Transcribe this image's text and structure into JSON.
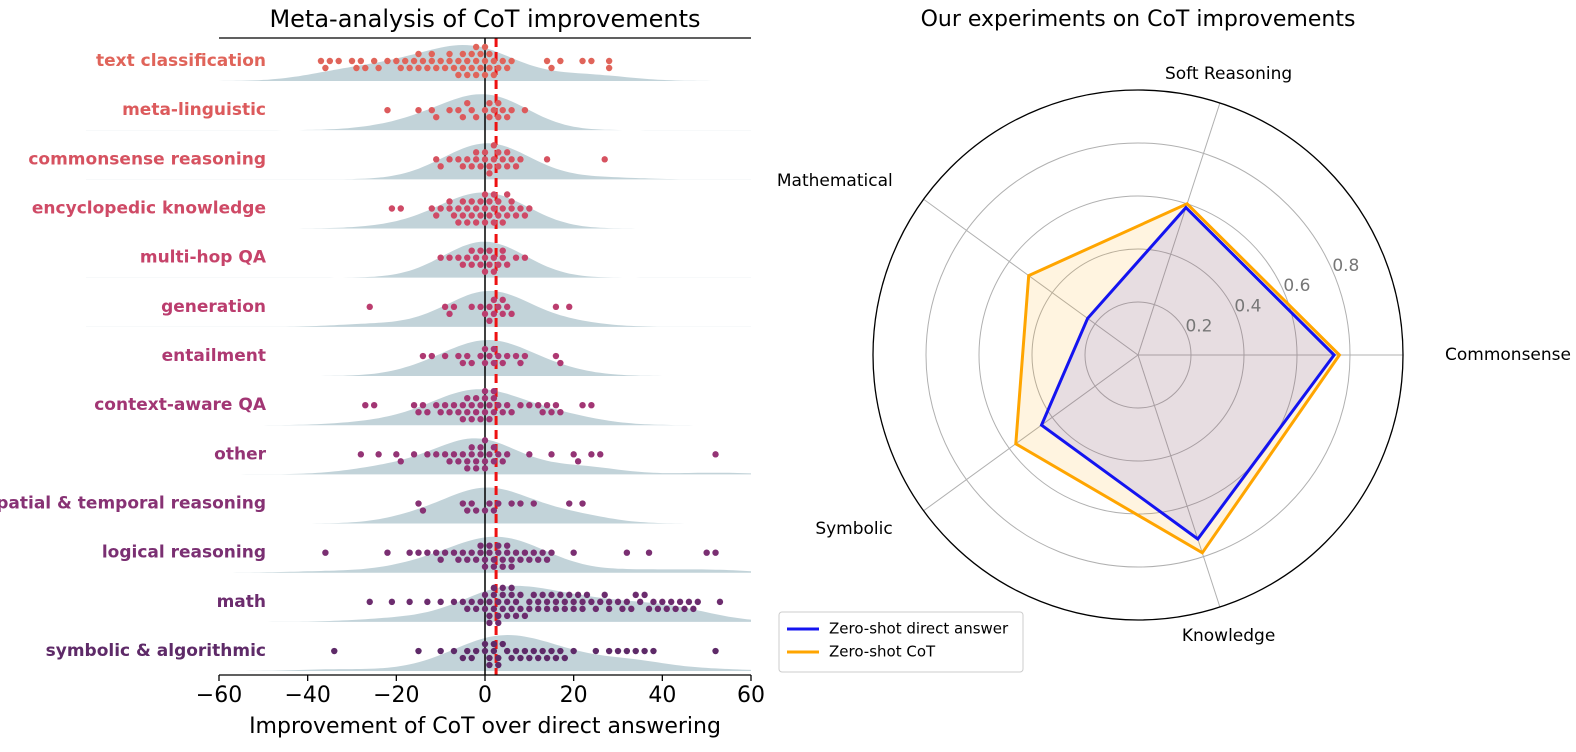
{
  "chart_data": [
    {
      "type": "swarm",
      "title": "Meta-analysis of CoT improvements",
      "x_label": "Improvement of CoT over direct answering",
      "xlim": [
        -60,
        60
      ],
      "xticks": [
        {
          "value": -60,
          "label": "−60"
        },
        {
          "value": -40,
          "label": "−40"
        },
        {
          "value": -20,
          "label": "−20"
        },
        0,
        20,
        40,
        60
      ],
      "categories": [
        "text classification",
        "meta-linguistic",
        "commonsense reasoning",
        "encyclopedic knowledge",
        "multi-hop QA",
        "generation",
        "entailment",
        "context-aware QA",
        "other",
        "spatial & temporal reasoning",
        "logical reasoning",
        "math",
        "symbolic & algorithmic"
      ],
      "colors": [
        "#e0645a",
        "#dc5a5c",
        "#d65260",
        "#cf4a66",
        "#c6436a",
        "#bb3d6e",
        "#ae3972",
        "#a23674",
        "#943475",
        "#873274",
        "#7a2f72",
        "#6c2c6e",
        "#5e2a68"
      ],
      "density_color": "#b7cbd2",
      "reference_lines": [
        {
          "value": 0,
          "color": "#000000",
          "style": "solid"
        },
        {
          "value": 2.5,
          "color": "#ee1111",
          "style": "dashed"
        }
      ],
      "points": [
        [
          -37,
          -36,
          -35,
          -33,
          -30,
          -29,
          -28,
          -27,
          -25,
          -24,
          -22,
          -20,
          -19,
          -18,
          -17,
          -16,
          -15,
          -14,
          -13,
          -12,
          -11,
          -10,
          -9,
          -8,
          -7,
          -6,
          -5,
          -4,
          -3,
          -2,
          -1,
          0,
          1,
          2,
          3,
          4,
          5,
          6,
          14,
          15,
          17,
          22,
          24,
          28,
          28,
          -5,
          -3,
          -2,
          -1,
          0,
          1,
          -4,
          -2,
          0,
          2,
          -6,
          -8,
          -12,
          -15
        ],
        [
          -22,
          -15,
          -12,
          -11,
          -8,
          -6,
          -5,
          -3,
          -2,
          0,
          1,
          2,
          3,
          4,
          5,
          6,
          9,
          -4,
          1,
          3
        ],
        [
          -11,
          -10,
          -8,
          -6,
          -4,
          -3,
          -2,
          -1,
          0,
          1,
          2,
          3,
          4,
          5,
          6,
          7,
          8,
          14,
          27,
          -2,
          0,
          1,
          3,
          5,
          -5,
          2
        ],
        [
          -21,
          -19,
          -12,
          -11,
          -10,
          -8,
          -7,
          -6,
          -5,
          -4,
          -3,
          -2,
          -1,
          0,
          1,
          2,
          3,
          4,
          5,
          6,
          7,
          8,
          9,
          10,
          -5,
          -3,
          -1,
          0,
          1,
          2,
          3,
          -4,
          -2,
          0,
          2,
          4,
          6,
          -6,
          -8,
          5
        ],
        [
          -10,
          -8,
          -6,
          -5,
          -4,
          -3,
          -2,
          -1,
          0,
          1,
          2,
          3,
          4,
          5,
          7,
          9,
          -3,
          -1,
          1,
          2,
          4,
          0
        ],
        [
          -26,
          -9,
          -8,
          -7,
          -3,
          -1,
          0,
          1,
          2,
          3,
          4,
          5,
          6,
          16,
          19,
          2,
          4,
          1
        ],
        [
          -14,
          -12,
          -9,
          -6,
          -4,
          -3,
          -1,
          0,
          1,
          2,
          3,
          5,
          7,
          9,
          16,
          17,
          -5,
          0,
          2,
          4,
          8
        ],
        [
          -27,
          -25,
          -16,
          -14,
          -13,
          -11,
          -9,
          -7,
          -5,
          -4,
          -3,
          -2,
          -1,
          0,
          1,
          2,
          3,
          4,
          5,
          6,
          8,
          10,
          12,
          13,
          14,
          16,
          17,
          22,
          24,
          -6,
          -4,
          -2,
          0,
          1,
          2,
          -8,
          -3,
          -1,
          0,
          2,
          -5,
          -10,
          -15,
          15
        ],
        [
          -28,
          -24,
          -20,
          -19,
          -16,
          -13,
          -11,
          -9,
          -7,
          -5,
          -4,
          -3,
          -2,
          -1,
          0,
          1,
          2,
          3,
          4,
          5,
          10,
          15,
          20,
          21,
          24,
          26,
          52,
          -6,
          -3,
          -1,
          0,
          2,
          -4,
          -2,
          0,
          -8
        ],
        [
          -15,
          -14,
          -5,
          -3,
          -2,
          1,
          2,
          3,
          6,
          8,
          11,
          19,
          22,
          -4,
          0
        ],
        [
          -36,
          -22,
          -17,
          -15,
          -13,
          -11,
          -9,
          -7,
          -5,
          -3,
          -2,
          -1,
          0,
          1,
          2,
          3,
          4,
          5,
          6,
          7,
          9,
          11,
          13,
          15,
          20,
          32,
          37,
          50,
          52,
          -4,
          -1,
          1,
          3,
          5,
          8,
          10,
          12,
          14,
          0,
          2,
          4,
          6,
          -10,
          -6
        ],
        [
          -26,
          -21,
          -17,
          -13,
          -10,
          -7,
          -5,
          -3,
          -1,
          0,
          1,
          2,
          3,
          4,
          5,
          6,
          7,
          8,
          10,
          12,
          14,
          16,
          18,
          20,
          22,
          24,
          26,
          28,
          30,
          32,
          33,
          35,
          38,
          40,
          42,
          44,
          46,
          48,
          53,
          -2,
          0,
          1,
          2,
          3,
          4,
          5,
          6,
          8,
          10,
          12,
          14,
          16,
          18,
          20,
          22,
          25,
          28,
          31,
          34,
          37,
          41,
          43,
          45,
          47,
          2,
          4,
          6,
          9,
          11,
          15,
          19,
          23,
          27,
          -4,
          1,
          3,
          7,
          13,
          17,
          21,
          36,
          39
        ],
        [
          -34,
          -15,
          -10,
          -7,
          -4,
          -2,
          0,
          1,
          2,
          3,
          5,
          7,
          9,
          11,
          13,
          15,
          17,
          20,
          25,
          30,
          32,
          36,
          38,
          52,
          -3,
          0,
          2,
          4,
          6,
          8,
          10,
          12,
          14,
          16,
          -5,
          1,
          3,
          18,
          28,
          34
        ]
      ]
    },
    {
      "type": "radar",
      "title": "Our experiments on CoT improvements",
      "axes": [
        "Commonsense",
        "Soft Reasoning",
        "Mathematical",
        "Symbolic",
        "Knowledge"
      ],
      "rlim": [
        0,
        1
      ],
      "rticks": [
        0.2,
        0.4,
        0.6,
        0.8
      ],
      "legend": "lower left",
      "series": [
        {
          "name": "Zero-shot direct answer",
          "color": "#1414f0",
          "values": [
            0.74,
            0.585,
            0.235,
            0.45,
            0.73
          ]
        },
        {
          "name": "Zero-shot CoT",
          "color": "#ffa500",
          "values": [
            0.76,
            0.6,
            0.51,
            0.57,
            0.785
          ]
        }
      ]
    }
  ]
}
